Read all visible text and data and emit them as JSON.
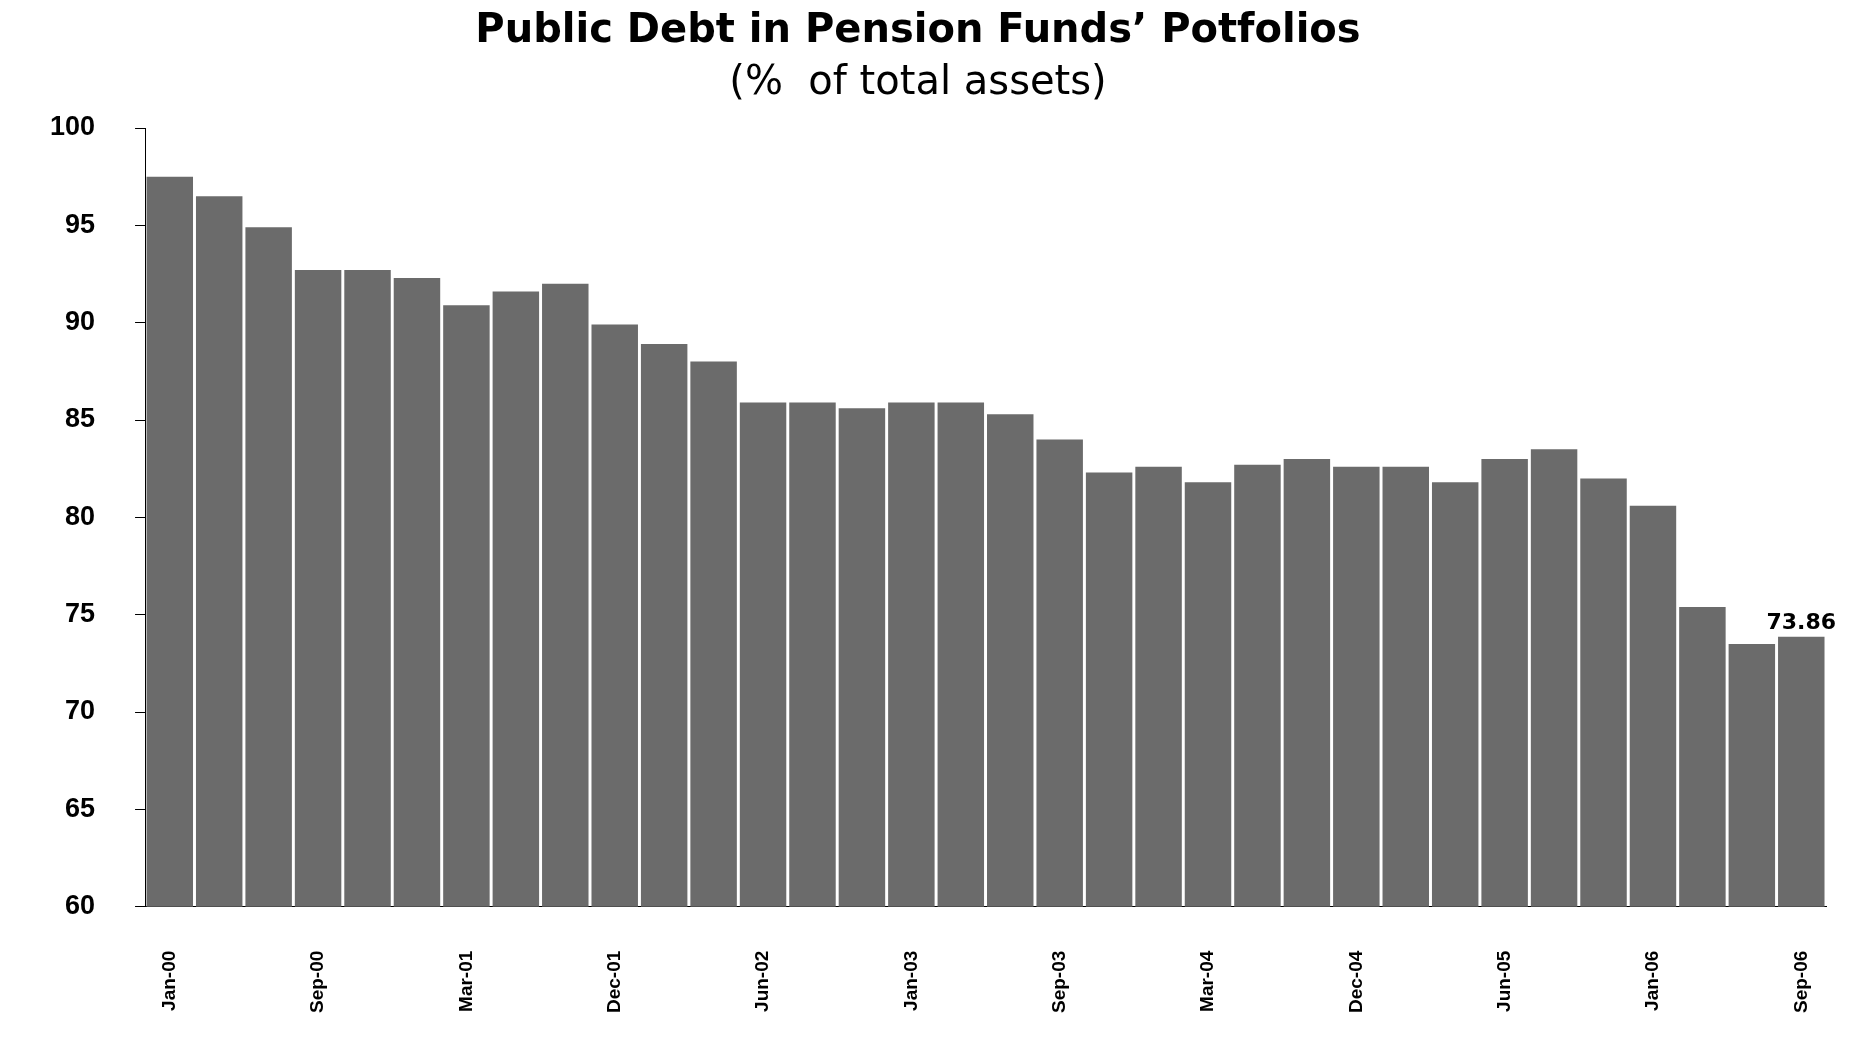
{
  "chart_data": {
    "type": "bar",
    "title": "Public Debt in Pension Funds’ Potfolios",
    "subtitle": "(%  of total assets)",
    "categories": [
      "Jan-00",
      null,
      null,
      "Sep-00",
      null,
      null,
      "Mar-01",
      null,
      null,
      "Dec-01",
      null,
      null,
      "Jun-02",
      null,
      null,
      "Jan-03",
      null,
      null,
      "Sep-03",
      null,
      null,
      "Mar-04",
      null,
      null,
      "Dec-04",
      null,
      null,
      "Jun-05",
      null,
      null,
      "Jan-06",
      null,
      null,
      "Sep-06"
    ],
    "values": [
      97.5,
      96.5,
      94.9,
      92.7,
      92.7,
      92.3,
      90.9,
      91.6,
      92.0,
      89.9,
      88.9,
      88.0,
      85.9,
      85.9,
      85.6,
      85.9,
      85.9,
      85.3,
      84.0,
      82.3,
      82.6,
      81.8,
      82.7,
      83.0,
      82.6,
      82.6,
      81.8,
      83.0,
      83.5,
      82.0,
      80.6,
      75.4,
      73.5,
      73.86
    ],
    "value_labels": [
      null,
      null,
      null,
      null,
      null,
      null,
      null,
      null,
      null,
      null,
      null,
      null,
      null,
      null,
      null,
      null,
      null,
      null,
      null,
      null,
      null,
      null,
      null,
      null,
      null,
      null,
      null,
      null,
      null,
      null,
      null,
      null,
      null,
      "73.86"
    ],
    "color": "#6b6b6b",
    "ylim": [
      60,
      100
    ],
    "yticks": [
      60,
      65,
      70,
      75,
      80,
      85,
      90,
      95,
      100
    ],
    "grid": false,
    "legend": false
  }
}
